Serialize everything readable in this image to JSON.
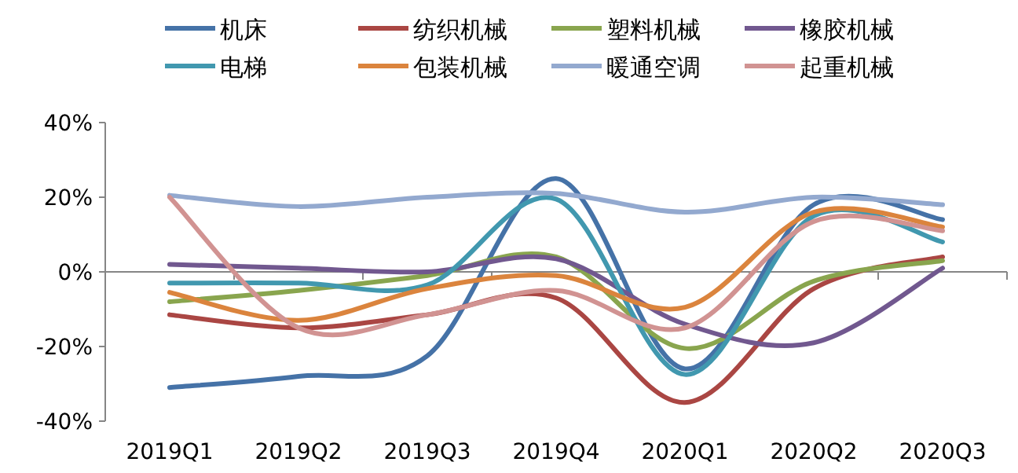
{
  "chart_data": {
    "type": "line",
    "categories": [
      "2019Q1",
      "2019Q2",
      "2019Q3",
      "2019Q4",
      "2020Q1",
      "2020Q2",
      "2020Q3"
    ],
    "series": [
      {
        "name": "机床",
        "color": "#4572a7",
        "values": [
          -31,
          -28,
          -22.5,
          25,
          -26,
          18,
          14
        ]
      },
      {
        "name": "纺织机械",
        "color": "#aa4643",
        "values": [
          -11.5,
          -15,
          -11.5,
          -7,
          -35,
          -4.5,
          4
        ]
      },
      {
        "name": "塑料机械",
        "color": "#89a54e",
        "values": [
          -8,
          -5,
          -1,
          4,
          -20.5,
          -2.5,
          3
        ]
      },
      {
        "name": "橡胶机械",
        "color": "#71588f",
        "values": [
          2,
          1,
          0,
          3.5,
          -14,
          -19,
          1
        ]
      },
      {
        "name": "电梯",
        "color": "#4198af",
        "values": [
          -3,
          -3,
          -3.5,
          19.5,
          -27.5,
          15,
          8
        ]
      },
      {
        "name": "包装机械",
        "color": "#db843d",
        "values": [
          -5.5,
          -13,
          -4.5,
          -1,
          -9.5,
          16,
          12
        ]
      },
      {
        "name": "暖通空调",
        "color": "#93a9cf",
        "values": [
          20.5,
          17.5,
          20,
          21,
          16,
          20,
          18
        ]
      },
      {
        "name": "起重机械",
        "color": "#d19392",
        "values": [
          20,
          -15,
          -11.5,
          -5,
          -15,
          13.5,
          11
        ]
      }
    ],
    "ylim": [
      -40,
      40
    ],
    "yticks": [
      {
        "value": -40,
        "label": "-40%"
      },
      {
        "value": -20,
        "label": "-20%"
      },
      {
        "value": 0,
        "label": "0%"
      },
      {
        "value": 20,
        "label": "20%"
      },
      {
        "value": 40,
        "label": "40%"
      }
    ],
    "legend": "top",
    "marker": "none",
    "line_style": "solid"
  }
}
